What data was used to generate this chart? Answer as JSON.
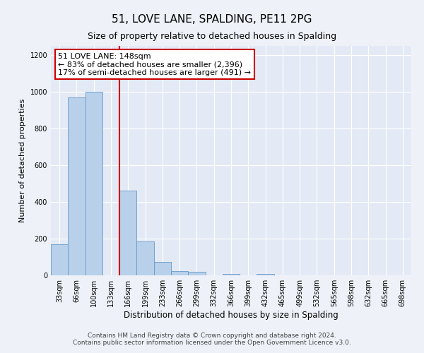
{
  "title": "51, LOVE LANE, SPALDING, PE11 2PG",
  "subtitle": "Size of property relative to detached houses in Spalding",
  "xlabel": "Distribution of detached houses by size in Spalding",
  "ylabel": "Number of detached properties",
  "categories": [
    "33sqm",
    "66sqm",
    "100sqm",
    "133sqm",
    "166sqm",
    "199sqm",
    "233sqm",
    "266sqm",
    "299sqm",
    "332sqm",
    "366sqm",
    "399sqm",
    "432sqm",
    "465sqm",
    "499sqm",
    "532sqm",
    "565sqm",
    "598sqm",
    "632sqm",
    "665sqm",
    "698sqm"
  ],
  "values": [
    170,
    968,
    1000,
    0,
    462,
    185,
    75,
    25,
    18,
    0,
    8,
    0,
    8,
    0,
    0,
    0,
    0,
    0,
    0,
    0,
    0
  ],
  "bar_color": "#b8d0ea",
  "bar_edge_color": "#6699cc",
  "vline_x_index": 3.5,
  "vline_color": "#cc0000",
  "annotation_text": "51 LOVE LANE: 148sqm\n← 83% of detached houses are smaller (2,396)\n17% of semi-detached houses are larger (491) →",
  "annotation_box_edge_color": "#cc0000",
  "ylim": [
    0,
    1250
  ],
  "yticks": [
    0,
    200,
    400,
    600,
    800,
    1000,
    1200
  ],
  "footer_text": "Contains HM Land Registry data © Crown copyright and database right 2024.\nContains public sector information licensed under the Open Government Licence v3.0.",
  "background_color": "#eef2f8",
  "plot_background_color": "#e4eaf5",
  "grid_color": "#ffffff",
  "title_fontsize": 11,
  "subtitle_fontsize": 9,
  "xlabel_fontsize": 8.5,
  "ylabel_fontsize": 8,
  "annotation_fontsize": 8,
  "footer_fontsize": 6.5,
  "tick_fontsize": 7
}
